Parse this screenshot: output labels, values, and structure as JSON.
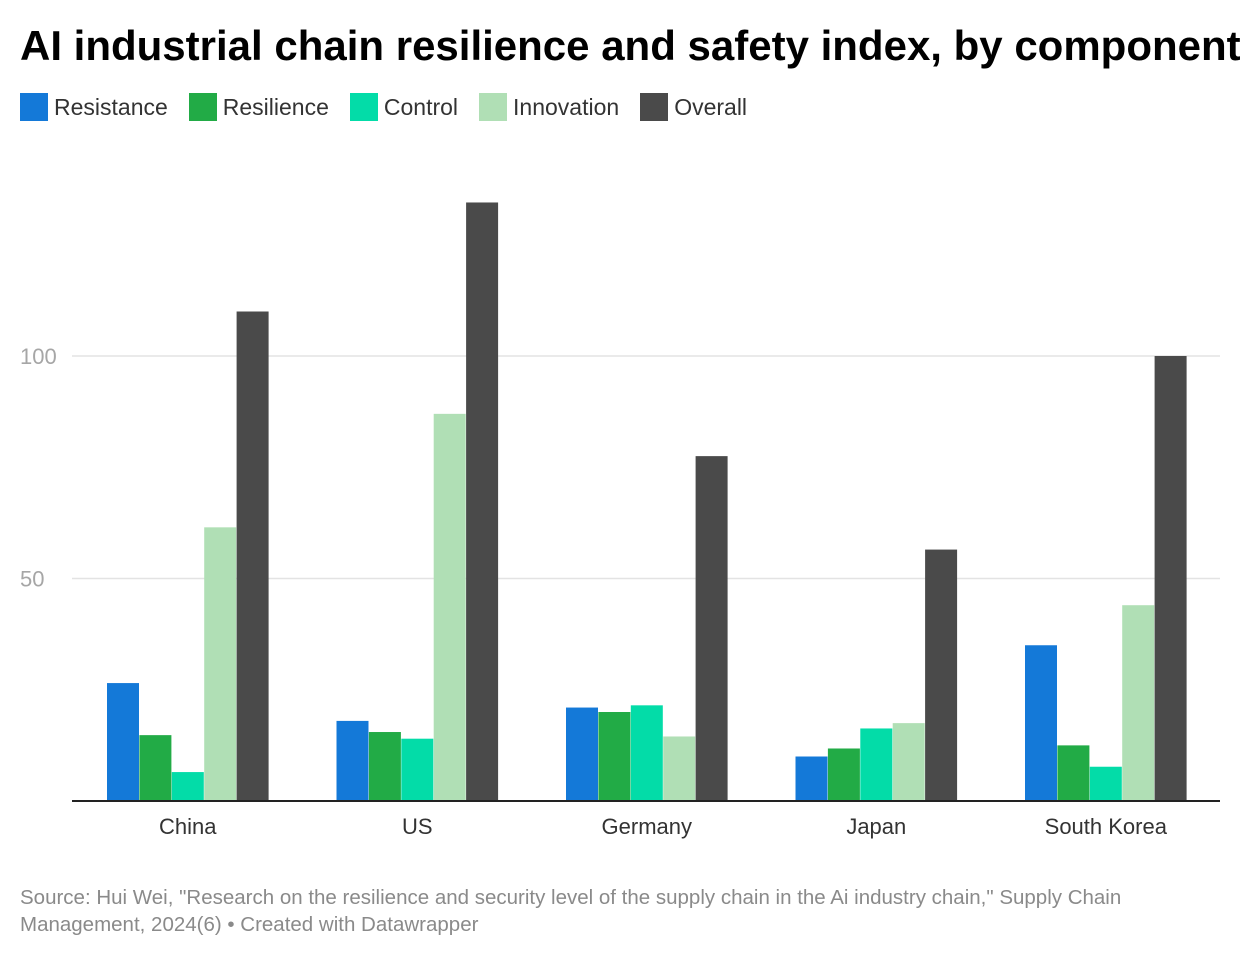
{
  "chart_data": {
    "type": "bar",
    "title": "AI industrial chain resilience and safety index, by component",
    "categories": [
      "China",
      "US",
      "Germany",
      "Japan",
      "South Korea"
    ],
    "series": [
      {
        "name": "Resistance",
        "color": "#1479d8",
        "values": [
          26.5,
          18,
          21,
          10,
          35
        ]
      },
      {
        "name": "Resilience",
        "color": "#22ab46",
        "values": [
          14.8,
          15.5,
          20,
          11.8,
          12.5
        ]
      },
      {
        "name": "Control",
        "color": "#03dca8",
        "values": [
          6.5,
          14,
          21.5,
          16.3,
          7.7
        ]
      },
      {
        "name": "Innovation",
        "color": "#b0dfb5",
        "values": [
          61.5,
          87,
          14.5,
          17.5,
          44
        ]
      },
      {
        "name": "Overall",
        "color": "#4a4a4a",
        "values": [
          110,
          134.5,
          77.5,
          56.5,
          100
        ]
      }
    ],
    "yticks": [
      50,
      100
    ],
    "ylim": [
      0,
      140
    ],
    "grid": true,
    "legend_position": "top-left"
  },
  "footer": {
    "source": "Source: Hui Wei, \"Research on the resilience and security level of the supply chain in the Ai industry chain,\" Supply Chain Management, 2024(6) • Created with Datawrapper"
  }
}
